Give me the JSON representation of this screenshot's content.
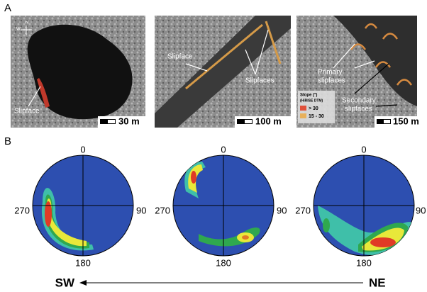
{
  "panel_a": {
    "label": "A",
    "compass": [
      "N",
      "W"
    ],
    "images": [
      {
        "labels": [
          "Slipface"
        ],
        "scale": "30 m"
      },
      {
        "labels": [
          "Slipface",
          "Slipfaces"
        ],
        "scale": "100 m"
      },
      {
        "labels": [
          [
            "Primary",
            "slipfaces"
          ],
          [
            "Secondary",
            "slipfaces"
          ]
        ],
        "scale": "150 m",
        "legend": {
          "title": "Slope (°)",
          "subtitle": "(HiRISE DTM)",
          "items": [
            "> 30",
            "15 - 30"
          ]
        }
      }
    ]
  },
  "panel_b": {
    "label": "B",
    "stereonets": [
      {
        "top": "0",
        "right": "90",
        "bottom": "180",
        "left": "270"
      },
      {
        "top": "0",
        "right": "90",
        "bottom": "180",
        "left": "270"
      },
      {
        "top": "0",
        "right": "90",
        "bottom": "180",
        "left": "270"
      }
    ],
    "arrow": {
      "left": "SW",
      "right": "NE"
    }
  }
}
